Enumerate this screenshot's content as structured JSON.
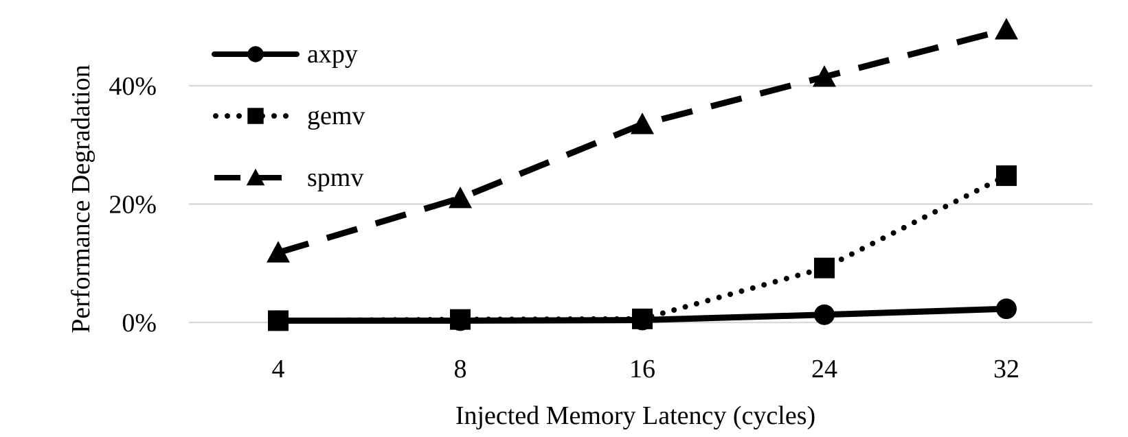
{
  "chart_data": {
    "type": "line",
    "categories": [
      "4",
      "8",
      "16",
      "24",
      "32"
    ],
    "series": [
      {
        "name": "axpy",
        "values": [
          0.3,
          0.3,
          0.4,
          1.3,
          2.3
        ],
        "marker": "circle",
        "dash": "solid"
      },
      {
        "name": "gemv",
        "values": [
          0.3,
          0.5,
          0.6,
          9.2,
          24.8
        ],
        "marker": "square",
        "dash": "dotted"
      },
      {
        "name": "spmv",
        "values": [
          11.8,
          21.0,
          33.5,
          41.5,
          49.5
        ],
        "marker": "triangle",
        "dash": "dashed"
      }
    ],
    "xlabel": "Injected Memory Latency (cycles)",
    "ylabel": "Performance Degradation",
    "yticks": [
      0,
      20,
      40
    ],
    "ytick_labels": [
      "0%",
      "20%",
      "40%"
    ],
    "ylim": [
      -3,
      50
    ],
    "grid": true,
    "legend_position": "top-left",
    "colors": {
      "line": "#000000",
      "grid": "#d9d9d9"
    }
  }
}
